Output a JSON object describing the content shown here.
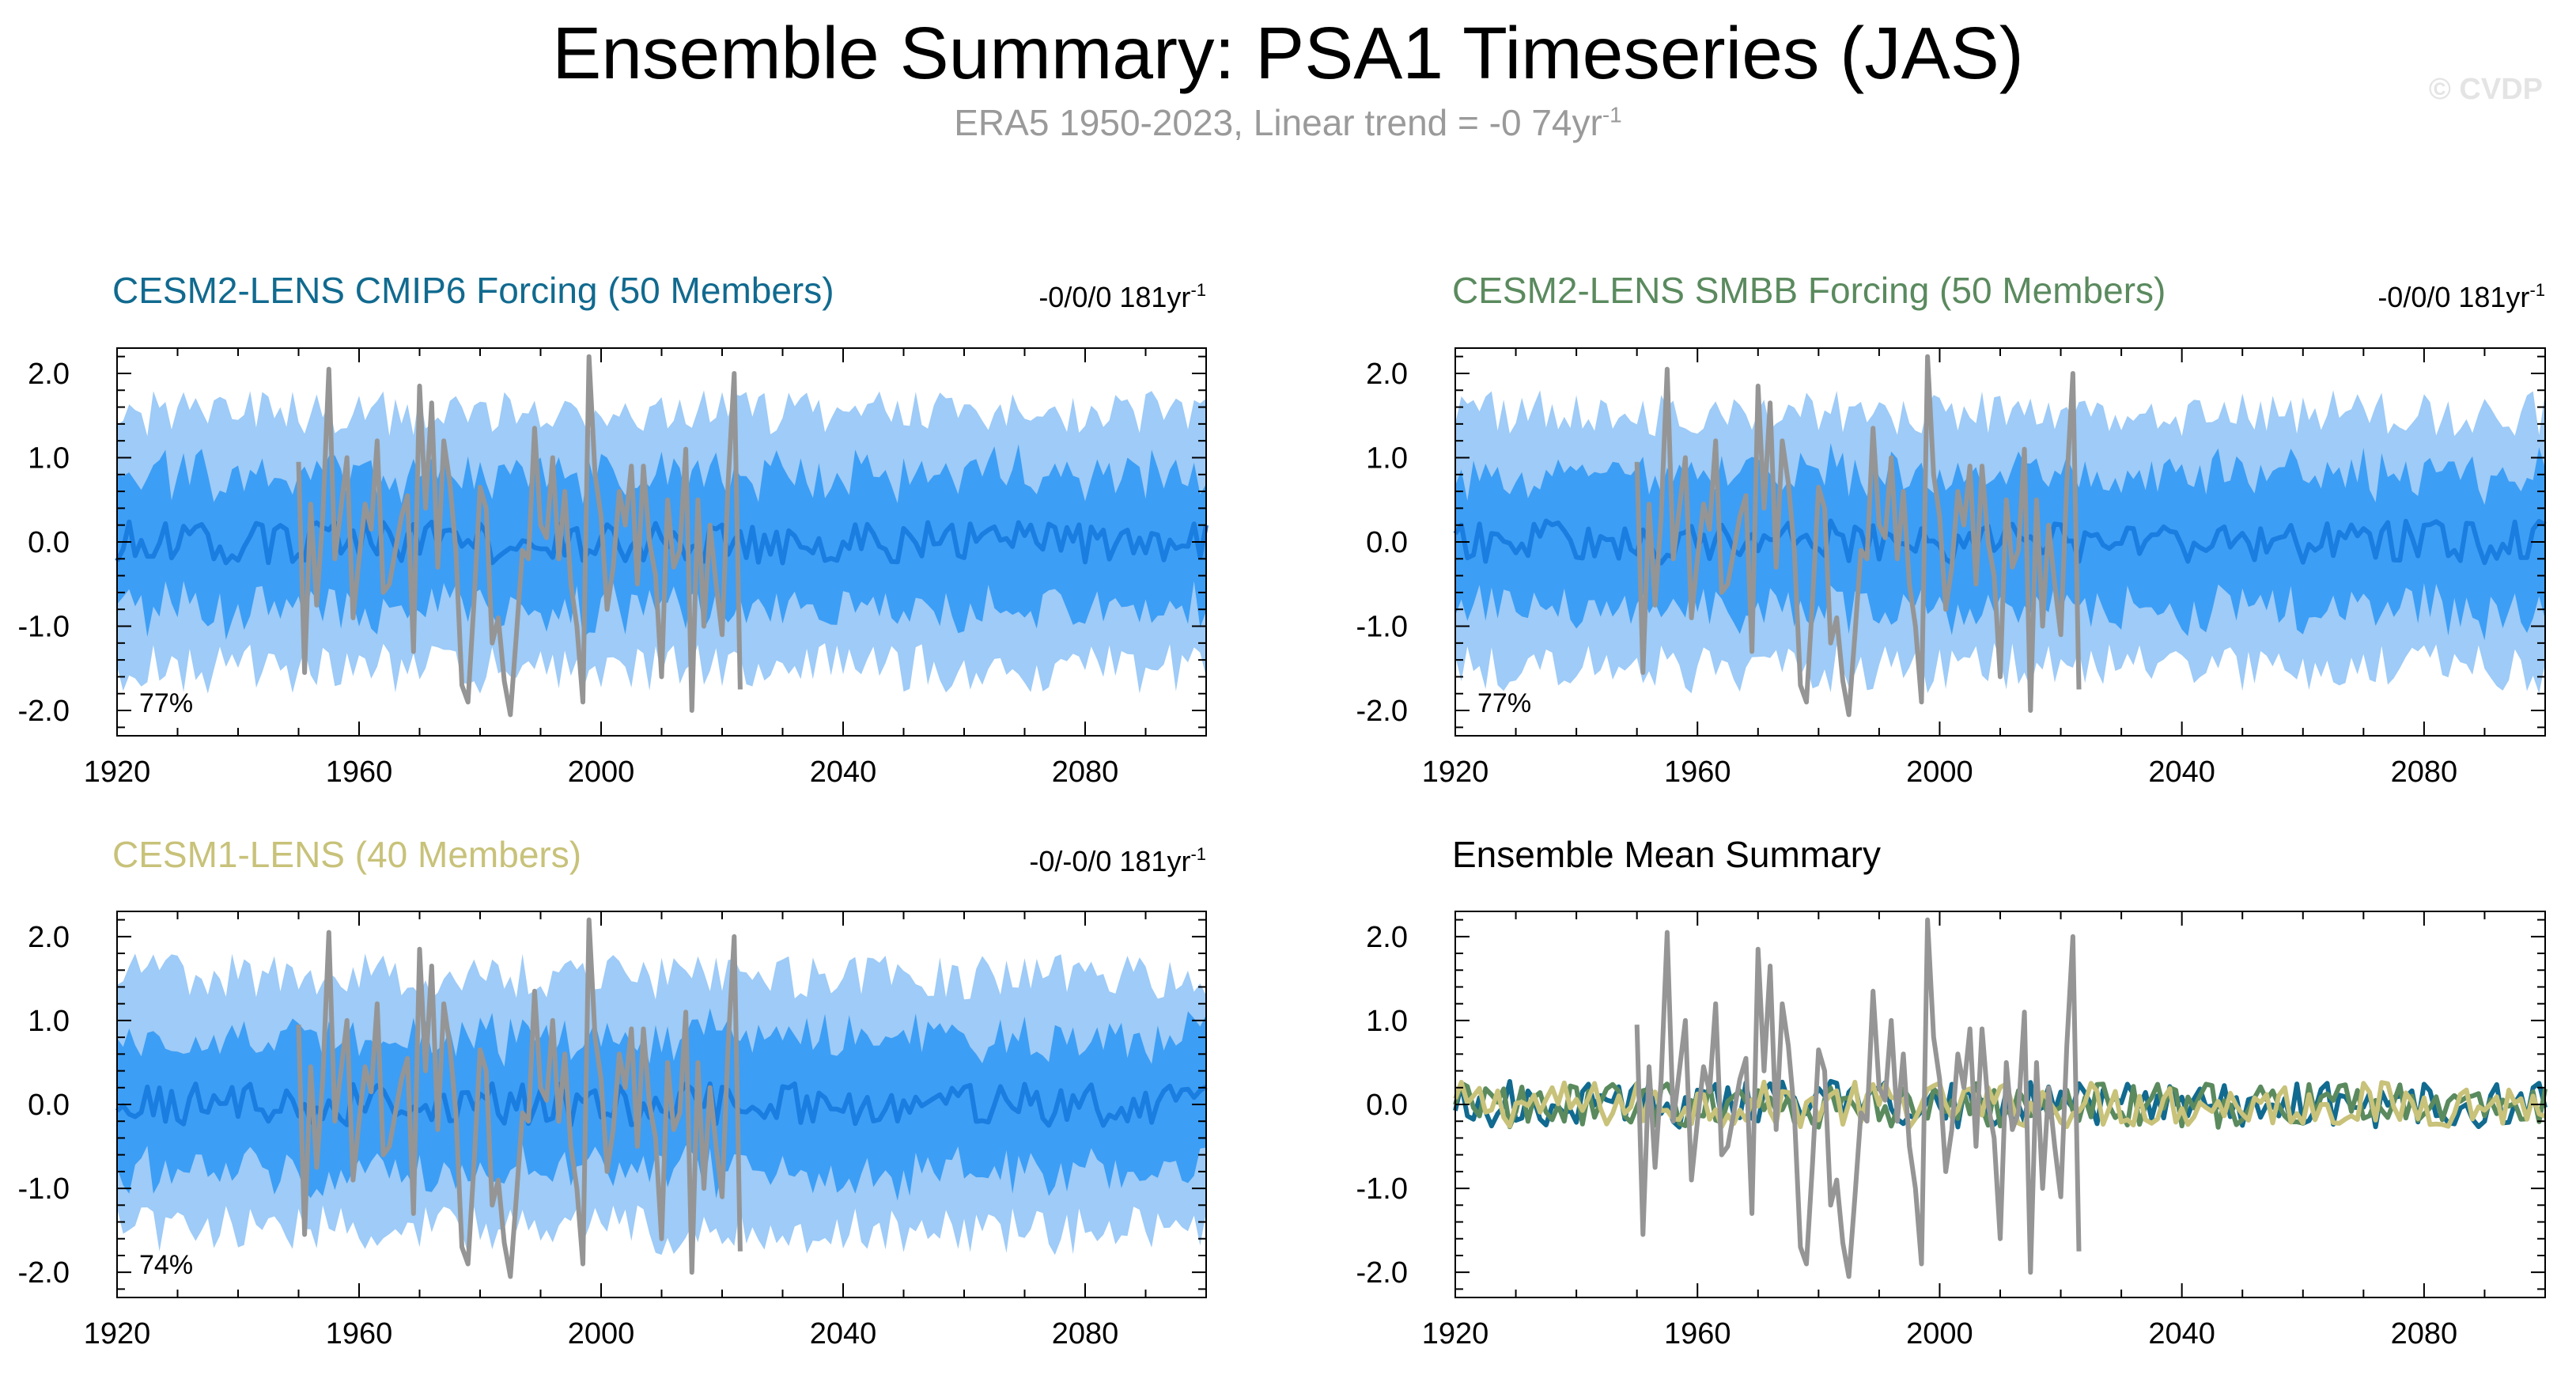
{
  "main_title": "Ensemble Summary: PSA1 Timeseries (JAS)",
  "subtitle_text": "ERA5 1950-2023, Linear trend = -0 74yr",
  "subtitle_exp": "-1",
  "watermark": "© CVDP",
  "colors": {
    "obs": "#959595",
    "band_outer": "#9ecbf7",
    "band_inner": "#3d9ef5",
    "ens_mean": "#1a7de0",
    "cmip6_title": "#116a8f",
    "smbb_title": "#5a8a5e",
    "cesm1_title": "#c8c27a",
    "summary_title": "#000000"
  },
  "chart_data": [
    {
      "type": "area",
      "title": "CESM2-LENS CMIP6 Forcing (50 Members)",
      "trend_text": "-0/0/0 181yr",
      "trend_exp": "-1",
      "percent_label": "77%",
      "x_range": [
        1920,
        2100
      ],
      "ylim": [
        -2.3,
        2.3
      ],
      "x_ticks": [
        "1920",
        "1960",
        "2000",
        "2040",
        "2080"
      ],
      "y_ticks": [
        "2.0",
        "1.0",
        "0.0",
        "-1.0",
        "-2.0"
      ],
      "series": [
        {
          "name": "ensemble 10-90% range",
          "style": "band_outer"
        },
        {
          "name": "ensemble 25-75% range",
          "style": "band_inner"
        },
        {
          "name": "ensemble mean",
          "style": "line"
        },
        {
          "name": "ERA5",
          "style": "obs_line",
          "x_range": [
            1950,
            2023
          ]
        }
      ]
    },
    {
      "type": "area",
      "title": "CESM2-LENS SMBB Forcing (50 Members)",
      "trend_text": "-0/0/0 181yr",
      "trend_exp": "-1",
      "percent_label": "77%",
      "x_range": [
        1920,
        2100
      ],
      "ylim": [
        -2.3,
        2.3
      ],
      "x_ticks": [
        "1920",
        "1960",
        "2000",
        "2040",
        "2080"
      ],
      "y_ticks": [
        "2.0",
        "1.0",
        "0.0",
        "-1.0",
        "-2.0"
      ],
      "series": [
        {
          "name": "ensemble 10-90% range",
          "style": "band_outer"
        },
        {
          "name": "ensemble 25-75% range",
          "style": "band_inner"
        },
        {
          "name": "ensemble mean",
          "style": "line"
        },
        {
          "name": "ERA5",
          "style": "obs_line",
          "x_range": [
            1950,
            2023
          ]
        }
      ]
    },
    {
      "type": "area",
      "title": "CESM1-LENS (40 Members)",
      "trend_text": "-0/-0/0 181yr",
      "trend_exp": "-1",
      "percent_label": "74%",
      "x_range": [
        1920,
        2100
      ],
      "ylim": [
        -2.3,
        2.3
      ],
      "x_ticks": [
        "1920",
        "1960",
        "2000",
        "2040",
        "2080"
      ],
      "y_ticks": [
        "2.0",
        "1.0",
        "0.0",
        "-1.0",
        "-2.0"
      ],
      "series": [
        {
          "name": "ensemble 10-90% range",
          "style": "band_outer"
        },
        {
          "name": "ensemble 25-75% range",
          "style": "band_inner"
        },
        {
          "name": "ensemble mean",
          "style": "line"
        },
        {
          "name": "ERA5",
          "style": "obs_line",
          "x_range": [
            1950,
            2023
          ]
        }
      ]
    },
    {
      "type": "line",
      "title": "Ensemble Mean Summary",
      "x_range": [
        1920,
        2100
      ],
      "ylim": [
        -2.3,
        2.3
      ],
      "x_ticks": [
        "1920",
        "1960",
        "2000",
        "2040",
        "2080"
      ],
      "y_ticks": [
        "2.0",
        "1.0",
        "0.0",
        "-1.0",
        "-2.0"
      ],
      "series": [
        {
          "name": "CESM2-LENS CMIP6 Forcing mean",
          "style": "cmip6"
        },
        {
          "name": "CESM2-LENS SMBB Forcing mean",
          "style": "smbb"
        },
        {
          "name": "CESM1-LENS mean",
          "style": "cesm1"
        },
        {
          "name": "ERA5",
          "style": "obs_line",
          "x_range": [
            1950,
            2023
          ]
        }
      ]
    }
  ],
  "era5_values": [
    0.95,
    -1.55,
    0.45,
    -0.75,
    0.3,
    2.05,
    -0.2,
    0.4,
    1.0,
    -0.9,
    -0.2,
    0.45,
    0.15,
    1.2,
    -0.6,
    -0.5,
    -0.1,
    0.3,
    0.55,
    -1.3,
    1.85,
    0.4,
    1.65,
    -0.3,
    1.2,
    0.7,
    -0.1,
    -1.7,
    -1.9,
    -0.7,
    0.65,
    0.4,
    -1.2,
    -0.9,
    -1.65,
    -2.05,
    -1.1,
    -0.1,
    -0.2,
    1.35,
    0.2,
    0.05,
    1.0,
    -0.2,
    0.6,
    -0.5,
    -1.0,
    -1.9,
    2.2,
    0.8,
    0.3,
    -0.8,
    -0.3,
    0.6,
    0.2,
    0.9,
    -0.5,
    0.9,
    0.0,
    -0.4,
    -1.6,
    0.5,
    -0.3,
    -0.1,
    1.1,
    -2.0,
    0.5,
    -1.0,
    0.2,
    -0.5,
    -1.1,
    0.7,
    2.0,
    -1.75
  ]
}
